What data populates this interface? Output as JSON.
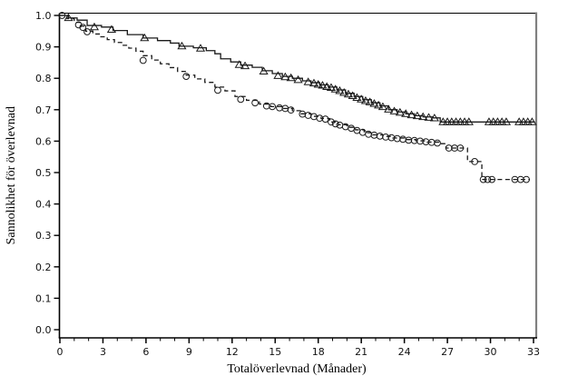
{
  "figure": {
    "background": "#ffffff",
    "axis_color": "#000000",
    "right_spine_color": "#808080",
    "series_color": "#1a1a1a"
  },
  "chart_data": {
    "type": "line",
    "subtype": "kaplan-meier-step",
    "title": "",
    "xlabel": "Totalöverlevnad (Månader)",
    "ylabel": "Sannolikhet för överlevnad",
    "xlim": [
      0,
      33
    ],
    "ylim": [
      0.0,
      1.0
    ],
    "grid": false,
    "legend_position": "none",
    "x_tick_labels": [
      "0",
      "3",
      "6",
      "9",
      "12",
      "15",
      "18",
      "21",
      "24",
      "27",
      "30",
      "33"
    ],
    "x_minor_step": 1,
    "y_tick_labels": [
      "0.0",
      "0.1",
      "0.2",
      "0.3",
      "0.4",
      "0.5",
      "0.6",
      "0.7",
      "0.8",
      "0.9",
      "1.0"
    ],
    "series": [
      {
        "name": "solid-triangle-arm",
        "line_style": "solid",
        "marker": "triangle-open",
        "steps": [
          [
            0,
            1.0
          ],
          [
            0.6,
            0.992
          ],
          [
            1.2,
            0.985
          ],
          [
            1.9,
            0.968
          ],
          [
            2.9,
            0.963
          ],
          [
            3.7,
            0.952
          ],
          [
            4.7,
            0.939
          ],
          [
            5.8,
            0.928
          ],
          [
            6.8,
            0.92
          ],
          [
            7.7,
            0.912
          ],
          [
            8.3,
            0.902
          ],
          [
            9.3,
            0.897
          ],
          [
            10.2,
            0.888
          ],
          [
            10.8,
            0.878
          ],
          [
            11.2,
            0.862
          ],
          [
            11.9,
            0.852
          ],
          [
            12.6,
            0.842
          ],
          [
            13.4,
            0.835
          ],
          [
            14.1,
            0.824
          ],
          [
            14.8,
            0.815
          ],
          [
            15.5,
            0.806
          ],
          [
            16.2,
            0.8
          ],
          [
            16.9,
            0.792
          ],
          [
            17.5,
            0.786
          ],
          [
            18.1,
            0.779
          ],
          [
            18.7,
            0.772
          ],
          [
            19.3,
            0.763
          ],
          [
            19.9,
            0.752
          ],
          [
            20.5,
            0.742
          ],
          [
            21.1,
            0.732
          ],
          [
            21.7,
            0.722
          ],
          [
            22.3,
            0.712
          ],
          [
            22.9,
            0.7
          ],
          [
            23.5,
            0.693
          ],
          [
            24.1,
            0.687
          ],
          [
            24.7,
            0.681
          ],
          [
            25.3,
            0.677
          ],
          [
            26.0,
            0.674
          ],
          [
            26.5,
            0.661
          ],
          [
            33.1,
            0.661
          ]
        ],
        "censor_marks": [
          [
            0.6,
            0.992
          ],
          [
            2.4,
            0.963
          ],
          [
            3.6,
            0.955
          ],
          [
            5.9,
            0.928
          ],
          [
            8.5,
            0.902
          ],
          [
            9.8,
            0.895
          ],
          [
            12.5,
            0.843
          ],
          [
            12.9,
            0.839
          ],
          [
            14.2,
            0.822
          ],
          [
            15.2,
            0.808
          ],
          [
            15.7,
            0.804
          ],
          [
            16.1,
            0.801
          ],
          [
            16.6,
            0.795
          ],
          [
            17.3,
            0.788
          ],
          [
            17.7,
            0.784
          ],
          [
            18.0,
            0.78
          ],
          [
            18.3,
            0.777
          ],
          [
            18.6,
            0.773
          ],
          [
            18.9,
            0.77
          ],
          [
            19.2,
            0.765
          ],
          [
            19.5,
            0.76
          ],
          [
            19.8,
            0.754
          ],
          [
            20.1,
            0.749
          ],
          [
            20.4,
            0.744
          ],
          [
            20.7,
            0.738
          ],
          [
            21.0,
            0.733
          ],
          [
            21.3,
            0.728
          ],
          [
            21.6,
            0.724
          ],
          [
            21.9,
            0.719
          ],
          [
            22.2,
            0.714
          ],
          [
            22.5,
            0.709
          ],
          [
            22.9,
            0.701
          ],
          [
            23.3,
            0.695
          ],
          [
            23.7,
            0.691
          ],
          [
            24.1,
            0.687
          ],
          [
            24.5,
            0.683
          ],
          [
            24.9,
            0.68
          ],
          [
            25.3,
            0.677
          ],
          [
            25.7,
            0.675
          ],
          [
            26.1,
            0.673
          ],
          [
            26.7,
            0.661
          ],
          [
            27.0,
            0.661
          ],
          [
            27.3,
            0.661
          ],
          [
            27.6,
            0.661
          ],
          [
            27.9,
            0.661
          ],
          [
            28.2,
            0.661
          ],
          [
            28.5,
            0.661
          ],
          [
            29.9,
            0.661
          ],
          [
            30.2,
            0.661
          ],
          [
            30.5,
            0.661
          ],
          [
            30.8,
            0.661
          ],
          [
            31.1,
            0.661
          ],
          [
            32.0,
            0.661
          ],
          [
            32.3,
            0.661
          ],
          [
            32.6,
            0.661
          ],
          [
            32.9,
            0.661
          ]
        ]
      },
      {
        "name": "dashed-circle-arm",
        "line_style": "dashed",
        "marker": "circle-open",
        "steps": [
          [
            0,
            1.0
          ],
          [
            0.5,
            0.99
          ],
          [
            1.0,
            0.978
          ],
          [
            1.4,
            0.966
          ],
          [
            1.8,
            0.95
          ],
          [
            2.3,
            0.941
          ],
          [
            2.8,
            0.932
          ],
          [
            3.3,
            0.923
          ],
          [
            3.8,
            0.914
          ],
          [
            4.3,
            0.905
          ],
          [
            4.8,
            0.896
          ],
          [
            5.3,
            0.886
          ],
          [
            5.8,
            0.872
          ],
          [
            6.4,
            0.858
          ],
          [
            7.0,
            0.846
          ],
          [
            7.6,
            0.834
          ],
          [
            8.2,
            0.822
          ],
          [
            8.8,
            0.81
          ],
          [
            9.4,
            0.798
          ],
          [
            10.1,
            0.787
          ],
          [
            10.8,
            0.772
          ],
          [
            11.5,
            0.76
          ],
          [
            12.2,
            0.742
          ],
          [
            13.0,
            0.73
          ],
          [
            13.9,
            0.718
          ],
          [
            14.7,
            0.71
          ],
          [
            15.5,
            0.704
          ],
          [
            16.2,
            0.697
          ],
          [
            16.8,
            0.687
          ],
          [
            17.5,
            0.679
          ],
          [
            18.2,
            0.672
          ],
          [
            18.8,
            0.661
          ],
          [
            19.4,
            0.652
          ],
          [
            20.0,
            0.644
          ],
          [
            20.6,
            0.636
          ],
          [
            21.2,
            0.627
          ],
          [
            21.8,
            0.62
          ],
          [
            22.5,
            0.615
          ],
          [
            23.2,
            0.61
          ],
          [
            24.0,
            0.605
          ],
          [
            24.8,
            0.601
          ],
          [
            25.6,
            0.597
          ],
          [
            26.4,
            0.592
          ],
          [
            26.9,
            0.578
          ],
          [
            28.4,
            0.535
          ],
          [
            29.4,
            0.478
          ],
          [
            32.75,
            0.478
          ]
        ],
        "censor_marks": [
          [
            0.15,
            1.0
          ],
          [
            1.3,
            0.97
          ],
          [
            1.6,
            0.962
          ],
          [
            1.9,
            0.948
          ],
          [
            5.8,
            0.857
          ],
          [
            8.8,
            0.806
          ],
          [
            11.0,
            0.762
          ],
          [
            12.6,
            0.733
          ],
          [
            13.6,
            0.722
          ],
          [
            14.4,
            0.712
          ],
          [
            14.8,
            0.71
          ],
          [
            15.3,
            0.706
          ],
          [
            15.7,
            0.704
          ],
          [
            16.1,
            0.699
          ],
          [
            16.9,
            0.686
          ],
          [
            17.3,
            0.682
          ],
          [
            17.7,
            0.678
          ],
          [
            18.1,
            0.673
          ],
          [
            18.5,
            0.67
          ],
          [
            18.9,
            0.661
          ],
          [
            19.2,
            0.655
          ],
          [
            19.5,
            0.651
          ],
          [
            19.9,
            0.646
          ],
          [
            20.3,
            0.641
          ],
          [
            20.7,
            0.634
          ],
          [
            21.1,
            0.628
          ],
          [
            21.5,
            0.622
          ],
          [
            21.9,
            0.619
          ],
          [
            22.3,
            0.616
          ],
          [
            22.7,
            0.613
          ],
          [
            23.1,
            0.611
          ],
          [
            23.5,
            0.608
          ],
          [
            23.9,
            0.606
          ],
          [
            24.3,
            0.603
          ],
          [
            24.7,
            0.602
          ],
          [
            25.1,
            0.6
          ],
          [
            25.5,
            0.598
          ],
          [
            25.9,
            0.596
          ],
          [
            26.3,
            0.594
          ],
          [
            27.1,
            0.578
          ],
          [
            27.5,
            0.578
          ],
          [
            27.9,
            0.578
          ],
          [
            28.9,
            0.535
          ],
          [
            29.5,
            0.478
          ],
          [
            29.8,
            0.478
          ],
          [
            30.1,
            0.478
          ],
          [
            31.7,
            0.478
          ],
          [
            32.1,
            0.478
          ],
          [
            32.5,
            0.478
          ]
        ]
      }
    ]
  }
}
